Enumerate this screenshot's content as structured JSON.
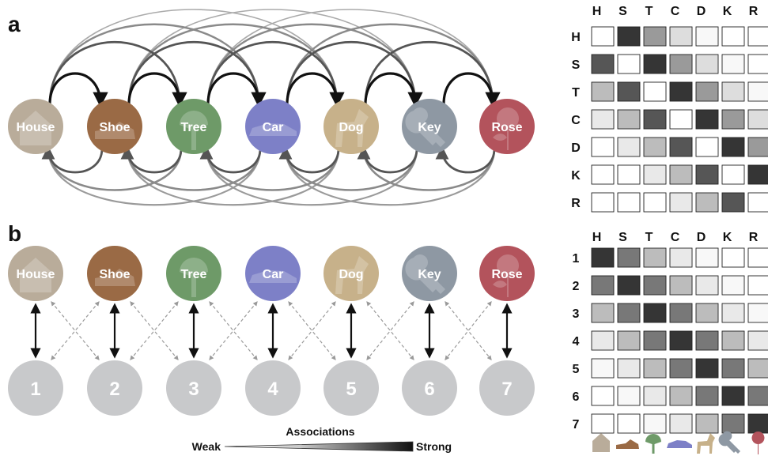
{
  "panels": {
    "a": "a",
    "b": "b"
  },
  "items": [
    {
      "label": "House",
      "color": "#b9ac9a"
    },
    {
      "label": "Shoe",
      "color": "#9a6a45"
    },
    {
      "label": "Tree",
      "color": "#6e9a68"
    },
    {
      "label": "Car",
      "color": "#7d80c7"
    },
    {
      "label": "Dog",
      "color": "#c7b18a"
    },
    {
      "label": "Key",
      "color": "#8e98a3"
    },
    {
      "label": "Rose",
      "color": "#b3535c"
    }
  ],
  "numbers": [
    "1",
    "2",
    "3",
    "4",
    "5",
    "6",
    "7"
  ],
  "matrix_a": {
    "col_headers": [
      "H",
      "S",
      "T",
      "C",
      "D",
      "K",
      "R"
    ],
    "row_headers": [
      "H",
      "S",
      "T",
      "C",
      "D",
      "K",
      "R"
    ],
    "values": [
      [
        0,
        0.9,
        0.45,
        0.15,
        0.03,
        0,
        0
      ],
      [
        0.75,
        0,
        0.9,
        0.45,
        0.15,
        0.03,
        0
      ],
      [
        0.3,
        0.75,
        0,
        0.9,
        0.45,
        0.15,
        0.03
      ],
      [
        0.1,
        0.3,
        0.75,
        0,
        0.9,
        0.45,
        0.15
      ],
      [
        0,
        0.1,
        0.3,
        0.75,
        0,
        0.9,
        0.45
      ],
      [
        0,
        0,
        0.1,
        0.3,
        0.75,
        0,
        0.9
      ],
      [
        0,
        0,
        0,
        0.1,
        0.3,
        0.75,
        0
      ]
    ]
  },
  "matrix_b": {
    "col_headers": [
      "H",
      "S",
      "T",
      "C",
      "D",
      "K",
      "R"
    ],
    "row_headers": [
      "1",
      "2",
      "3",
      "4",
      "5",
      "6",
      "7"
    ],
    "values": [
      [
        0.9,
        0.6,
        0.3,
        0.1,
        0.03,
        0,
        0
      ],
      [
        0.6,
        0.9,
        0.6,
        0.3,
        0.1,
        0.03,
        0
      ],
      [
        0.3,
        0.6,
        0.9,
        0.6,
        0.3,
        0.1,
        0.03
      ],
      [
        0.1,
        0.3,
        0.6,
        0.9,
        0.6,
        0.3,
        0.1
      ],
      [
        0.03,
        0.1,
        0.3,
        0.6,
        0.9,
        0.6,
        0.3
      ],
      [
        0,
        0.03,
        0.1,
        0.3,
        0.6,
        0.9,
        0.6
      ],
      [
        0,
        0,
        0.03,
        0.1,
        0.3,
        0.6,
        0.9
      ]
    ]
  },
  "legend": {
    "title": "Associations",
    "weak": "Weak",
    "strong": "Strong"
  },
  "icons": [
    "house-icon",
    "shoe-icon",
    "tree-icon",
    "car-icon",
    "dog-icon",
    "key-icon",
    "rose-icon"
  ]
}
